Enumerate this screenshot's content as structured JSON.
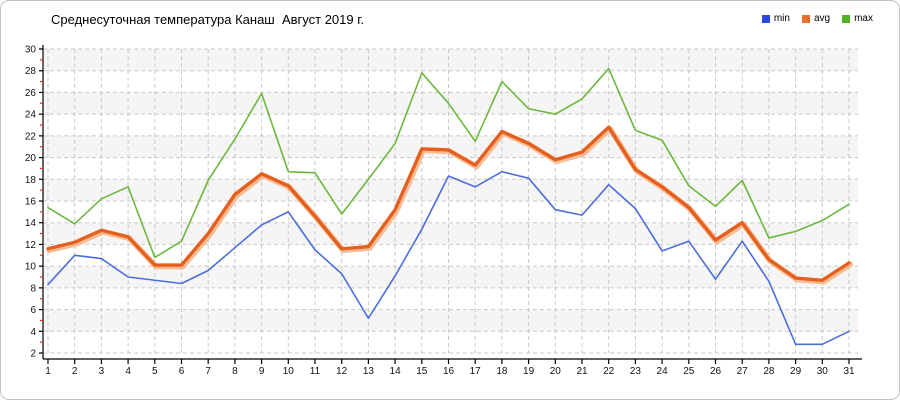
{
  "header": {
    "title": "Среднесуточная температура Канаш  Август 2019 г."
  },
  "legend": {
    "items": [
      {
        "label": "min",
        "color": "#2b49e0"
      },
      {
        "label": "avg",
        "color": "#e8702a"
      },
      {
        "label": "max",
        "color": "#55ad28"
      }
    ]
  },
  "chart_data": {
    "type": "line",
    "title": "Среднесуточная температура Канаш  Август 2019 г.",
    "xlabel": "",
    "ylabel": "",
    "x": [
      1,
      2,
      3,
      4,
      5,
      6,
      7,
      8,
      9,
      10,
      11,
      12,
      13,
      14,
      15,
      16,
      17,
      18,
      19,
      20,
      21,
      22,
      23,
      24,
      25,
      26,
      27,
      28,
      29,
      30,
      31
    ],
    "xlim": [
      1,
      31
    ],
    "ylim": [
      2,
      30
    ],
    "ytick_step": 2,
    "grid": true,
    "legend_position": "top-right",
    "background_bands": [
      "#ffffff",
      "#f5f5f5"
    ],
    "axis_color": "#000000",
    "gridline_color": "#c9c9c9",
    "minor_tick_color": "#e03030",
    "tick_label_color": "#111111",
    "series": [
      {
        "name": "min",
        "color": "#4a6edb",
        "width": 1.6,
        "values": [
          8.3,
          11.0,
          10.7,
          9.0,
          8.7,
          8.4,
          9.6,
          11.7,
          13.8,
          15.0,
          11.5,
          9.3,
          5.2,
          9.1,
          13.4,
          18.3,
          17.3,
          18.7,
          18.1,
          15.2,
          14.7,
          17.5,
          15.3,
          11.4,
          12.3,
          8.8,
          12.3,
          8.6,
          2.8,
          2.8,
          4.0
        ]
      },
      {
        "name": "avg",
        "color": "#e55f1e",
        "halo_color": "#f6bd95",
        "width": 3.4,
        "values": [
          11.6,
          12.2,
          13.3,
          12.7,
          10.1,
          10.1,
          13.0,
          16.6,
          18.5,
          17.4,
          14.6,
          11.6,
          11.8,
          15.2,
          20.8,
          20.7,
          19.3,
          22.4,
          21.3,
          19.8,
          20.5,
          22.8,
          18.9,
          17.3,
          15.4,
          12.4,
          14.0,
          10.6,
          8.9,
          8.7,
          10.3
        ]
      },
      {
        "name": "max",
        "color": "#6cb83f",
        "width": 1.6,
        "values": [
          15.4,
          13.9,
          16.2,
          17.3,
          10.8,
          12.3,
          17.9,
          21.7,
          25.9,
          18.7,
          18.6,
          14.8,
          18.0,
          21.3,
          27.8,
          25.0,
          21.5,
          27.0,
          24.5,
          24.0,
          25.4,
          28.2,
          22.5,
          21.6,
          17.4,
          15.5,
          17.9,
          12.6,
          13.2,
          14.2,
          15.7
        ]
      }
    ]
  }
}
